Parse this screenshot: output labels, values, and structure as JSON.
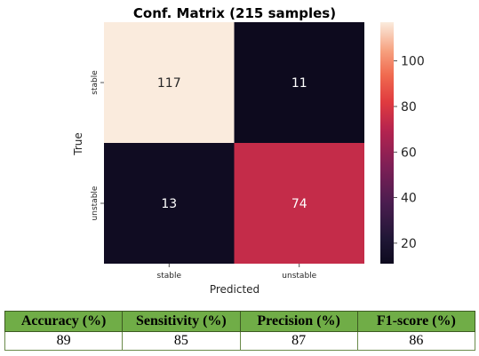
{
  "chart_data": {
    "type": "heatmap",
    "title": "Conf. Matrix (215 samples)",
    "xlabel": "Predicted",
    "ylabel": "True",
    "x_categories": [
      "stable",
      "unstable"
    ],
    "y_categories": [
      "stable",
      "unstable"
    ],
    "values": [
      [
        117,
        11
      ],
      [
        13,
        74
      ]
    ],
    "colorbar": {
      "range": [
        11,
        117
      ],
      "ticks": [
        20,
        40,
        60,
        80,
        100
      ],
      "tick_labels": [
        "20",
        "40",
        "60",
        "80",
        "100"
      ]
    },
    "colormap": "rocket",
    "annotation_colors": {
      "light_cell": "#262626",
      "dark_cell": "#ffffff"
    }
  },
  "metrics_table": {
    "header_color": "#70ad47",
    "headers": [
      "Accuracy (%)",
      "Sensitivity (%)",
      "Precision (%)",
      "F1-score (%)"
    ],
    "values": [
      "89",
      "85",
      "87",
      "86"
    ]
  }
}
